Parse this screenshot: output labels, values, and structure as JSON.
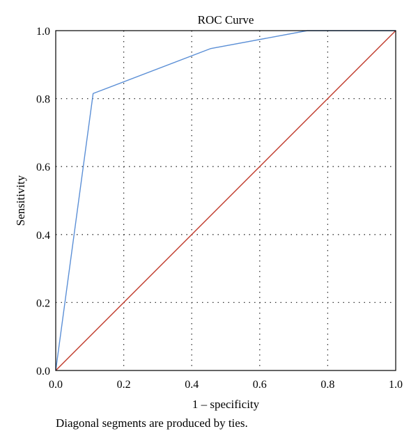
{
  "chart_data": {
    "type": "line",
    "title": "ROC Curve",
    "xlabel": "1 – specificity",
    "ylabel": "Sensitivity",
    "footnote": "Diagonal segments are produced by ties.",
    "xlim": [
      0,
      1
    ],
    "ylim": [
      0,
      1
    ],
    "xticks": [
      "0.0",
      "0.2",
      "0.4",
      "0.6",
      "0.8",
      "1.0"
    ],
    "yticks": [
      "0.0",
      "0.2",
      "0.4",
      "0.6",
      "0.8",
      "1.0"
    ],
    "grid": true,
    "series": [
      {
        "color": "#5b8fd6",
        "x": [
          0.0,
          0.11,
          0.455,
          0.74,
          1.0
        ],
        "y": [
          0.0,
          0.815,
          0.947,
          1.0,
          1.0
        ]
      },
      {
        "color": "#c0392b",
        "x": [
          0.0,
          1.0
        ],
        "y": [
          0.0,
          1.0
        ]
      }
    ]
  }
}
